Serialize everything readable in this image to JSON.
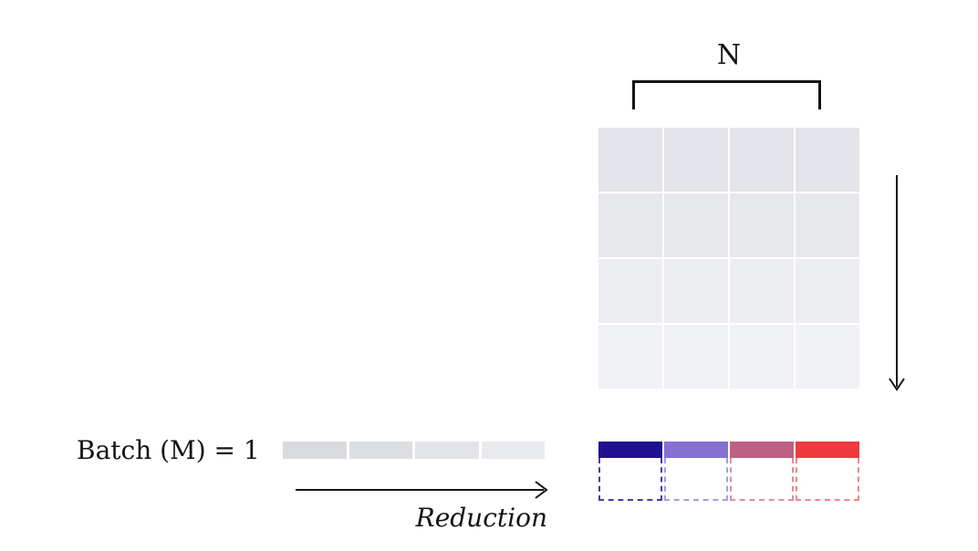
{
  "labels": {
    "n_label": "N",
    "batch_label": "Batch (M) = 1",
    "reduction_label": "Reduction"
  },
  "matrix": {
    "rows": 4,
    "cols": 4,
    "row_colors": [
      "#e2e4e9",
      "#e6e8ec",
      "#ebedf0",
      "#f1f2f5"
    ]
  },
  "input_vector": {
    "cells": 4,
    "cell_colors": [
      "#d8dade",
      "#dcdee1",
      "#e2e3e7",
      "#e9eaed"
    ]
  },
  "output_vector": {
    "cells": 4,
    "cell_colors": [
      "#21108f",
      "#8471d2",
      "#c05f84",
      "#ee3a3c"
    ],
    "dashed_border_colors": [
      "#4a3da0",
      "#a79ee0",
      "#d593a9",
      "#f48787"
    ]
  },
  "icons": {
    "down_arrow": "down-arrow-icon",
    "right_arrow": "right-arrow-icon",
    "arrow_color": "#111111"
  }
}
